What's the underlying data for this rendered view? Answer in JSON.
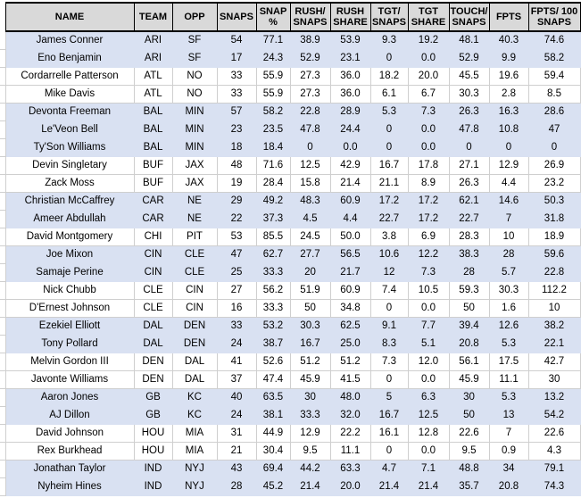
{
  "colors": {
    "header_fill": "#D9D9D9",
    "header_border": "#000000",
    "shaded_row_fill": "#D9E1F2",
    "gridline": "#CFCFCF",
    "text": "#000000"
  },
  "table": {
    "columns": [
      {
        "key": "name",
        "label": "NAME"
      },
      {
        "key": "team",
        "label": "TEAM"
      },
      {
        "key": "opp",
        "label": "OPP"
      },
      {
        "key": "snaps",
        "label": "SNAPS"
      },
      {
        "key": "snap_pct",
        "label": "SNAP\n%"
      },
      {
        "key": "rush_snaps",
        "label": "RUSH/\nSNAPS"
      },
      {
        "key": "rush_share",
        "label": "RUSH\nSHARE"
      },
      {
        "key": "tgt_snaps",
        "label": "TGT/\nSNAPS"
      },
      {
        "key": "tgt_share",
        "label": "TGT\nSHARE"
      },
      {
        "key": "touch_snaps",
        "label": "TOUCH/\nSNAPS"
      },
      {
        "key": "fpts",
        "label": "FPTS"
      },
      {
        "key": "fpts_100",
        "label": "FPTS/ 100\nSNAPS"
      }
    ],
    "rows": [
      {
        "name": "James Conner",
        "team": "ARI",
        "opp": "SF",
        "snaps": "54",
        "snap_pct": "77.1",
        "rush_snaps": "38.9",
        "rush_share": "53.9",
        "tgt_snaps": "9.3",
        "tgt_share": "19.2",
        "touch_snaps": "48.1",
        "fpts": "40.3",
        "fpts_100": "74.6"
      },
      {
        "name": "Eno Benjamin",
        "team": "ARI",
        "opp": "SF",
        "snaps": "17",
        "snap_pct": "24.3",
        "rush_snaps": "52.9",
        "rush_share": "23.1",
        "tgt_snaps": "0",
        "tgt_share": "0.0",
        "touch_snaps": "52.9",
        "fpts": "9.9",
        "fpts_100": "58.2"
      },
      {
        "name": "Cordarrelle Patterson",
        "team": "ATL",
        "opp": "NO",
        "snaps": "33",
        "snap_pct": "55.9",
        "rush_snaps": "27.3",
        "rush_share": "36.0",
        "tgt_snaps": "18.2",
        "tgt_share": "20.0",
        "touch_snaps": "45.5",
        "fpts": "19.6",
        "fpts_100": "59.4"
      },
      {
        "name": "Mike Davis",
        "team": "ATL",
        "opp": "NO",
        "snaps": "33",
        "snap_pct": "55.9",
        "rush_snaps": "27.3",
        "rush_share": "36.0",
        "tgt_snaps": "6.1",
        "tgt_share": "6.7",
        "touch_snaps": "30.3",
        "fpts": "2.8",
        "fpts_100": "8.5"
      },
      {
        "name": "Devonta Freeman",
        "team": "BAL",
        "opp": "MIN",
        "snaps": "57",
        "snap_pct": "58.2",
        "rush_snaps": "22.8",
        "rush_share": "28.9",
        "tgt_snaps": "5.3",
        "tgt_share": "7.3",
        "touch_snaps": "26.3",
        "fpts": "16.3",
        "fpts_100": "28.6"
      },
      {
        "name": "Le'Veon Bell",
        "team": "BAL",
        "opp": "MIN",
        "snaps": "23",
        "snap_pct": "23.5",
        "rush_snaps": "47.8",
        "rush_share": "24.4",
        "tgt_snaps": "0",
        "tgt_share": "0.0",
        "touch_snaps": "47.8",
        "fpts": "10.8",
        "fpts_100": "47"
      },
      {
        "name": "Ty'Son Williams",
        "team": "BAL",
        "opp": "MIN",
        "snaps": "18",
        "snap_pct": "18.4",
        "rush_snaps": "0",
        "rush_share": "0.0",
        "tgt_snaps": "0",
        "tgt_share": "0.0",
        "touch_snaps": "0",
        "fpts": "0",
        "fpts_100": "0"
      },
      {
        "name": "Devin Singletary",
        "team": "BUF",
        "opp": "JAX",
        "snaps": "48",
        "snap_pct": "71.6",
        "rush_snaps": "12.5",
        "rush_share": "42.9",
        "tgt_snaps": "16.7",
        "tgt_share": "17.8",
        "touch_snaps": "27.1",
        "fpts": "12.9",
        "fpts_100": "26.9"
      },
      {
        "name": "Zack Moss",
        "team": "BUF",
        "opp": "JAX",
        "snaps": "19",
        "snap_pct": "28.4",
        "rush_snaps": "15.8",
        "rush_share": "21.4",
        "tgt_snaps": "21.1",
        "tgt_share": "8.9",
        "touch_snaps": "26.3",
        "fpts": "4.4",
        "fpts_100": "23.2"
      },
      {
        "name": "Christian McCaffrey",
        "team": "CAR",
        "opp": "NE",
        "snaps": "29",
        "snap_pct": "49.2",
        "rush_snaps": "48.3",
        "rush_share": "60.9",
        "tgt_snaps": "17.2",
        "tgt_share": "17.2",
        "touch_snaps": "62.1",
        "fpts": "14.6",
        "fpts_100": "50.3"
      },
      {
        "name": "Ameer Abdullah",
        "team": "CAR",
        "opp": "NE",
        "snaps": "22",
        "snap_pct": "37.3",
        "rush_snaps": "4.5",
        "rush_share": "4.4",
        "tgt_snaps": "22.7",
        "tgt_share": "17.2",
        "touch_snaps": "22.7",
        "fpts": "7",
        "fpts_100": "31.8"
      },
      {
        "name": "David Montgomery",
        "team": "CHI",
        "opp": "PIT",
        "snaps": "53",
        "snap_pct": "85.5",
        "rush_snaps": "24.5",
        "rush_share": "50.0",
        "tgt_snaps": "3.8",
        "tgt_share": "6.9",
        "touch_snaps": "28.3",
        "fpts": "10",
        "fpts_100": "18.9"
      },
      {
        "name": "Joe Mixon",
        "team": "CIN",
        "opp": "CLE",
        "snaps": "47",
        "snap_pct": "62.7",
        "rush_snaps": "27.7",
        "rush_share": "56.5",
        "tgt_snaps": "10.6",
        "tgt_share": "12.2",
        "touch_snaps": "38.3",
        "fpts": "28",
        "fpts_100": "59.6"
      },
      {
        "name": "Samaje Perine",
        "team": "CIN",
        "opp": "CLE",
        "snaps": "25",
        "snap_pct": "33.3",
        "rush_snaps": "20",
        "rush_share": "21.7",
        "tgt_snaps": "12",
        "tgt_share": "7.3",
        "touch_snaps": "28",
        "fpts": "5.7",
        "fpts_100": "22.8"
      },
      {
        "name": "Nick Chubb",
        "team": "CLE",
        "opp": "CIN",
        "snaps": "27",
        "snap_pct": "56.2",
        "rush_snaps": "51.9",
        "rush_share": "60.9",
        "tgt_snaps": "7.4",
        "tgt_share": "10.5",
        "touch_snaps": "59.3",
        "fpts": "30.3",
        "fpts_100": "112.2"
      },
      {
        "name": "D'Ernest Johnson",
        "team": "CLE",
        "opp": "CIN",
        "snaps": "16",
        "snap_pct": "33.3",
        "rush_snaps": "50",
        "rush_share": "34.8",
        "tgt_snaps": "0",
        "tgt_share": "0.0",
        "touch_snaps": "50",
        "fpts": "1.6",
        "fpts_100": "10"
      },
      {
        "name": "Ezekiel Elliott",
        "team": "DAL",
        "opp": "DEN",
        "snaps": "33",
        "snap_pct": "53.2",
        "rush_snaps": "30.3",
        "rush_share": "62.5",
        "tgt_snaps": "9.1",
        "tgt_share": "7.7",
        "touch_snaps": "39.4",
        "fpts": "12.6",
        "fpts_100": "38.2"
      },
      {
        "name": "Tony Pollard",
        "team": "DAL",
        "opp": "DEN",
        "snaps": "24",
        "snap_pct": "38.7",
        "rush_snaps": "16.7",
        "rush_share": "25.0",
        "tgt_snaps": "8.3",
        "tgt_share": "5.1",
        "touch_snaps": "20.8",
        "fpts": "5.3",
        "fpts_100": "22.1"
      },
      {
        "name": "Melvin Gordon III",
        "team": "DEN",
        "opp": "DAL",
        "snaps": "41",
        "snap_pct": "52.6",
        "rush_snaps": "51.2",
        "rush_share": "51.2",
        "tgt_snaps": "7.3",
        "tgt_share": "12.0",
        "touch_snaps": "56.1",
        "fpts": "17.5",
        "fpts_100": "42.7"
      },
      {
        "name": "Javonte Williams",
        "team": "DEN",
        "opp": "DAL",
        "snaps": "37",
        "snap_pct": "47.4",
        "rush_snaps": "45.9",
        "rush_share": "41.5",
        "tgt_snaps": "0",
        "tgt_share": "0.0",
        "touch_snaps": "45.9",
        "fpts": "11.1",
        "fpts_100": "30"
      },
      {
        "name": "Aaron Jones",
        "team": "GB",
        "opp": "KC",
        "snaps": "40",
        "snap_pct": "63.5",
        "rush_snaps": "30",
        "rush_share": "48.0",
        "tgt_snaps": "5",
        "tgt_share": "6.3",
        "touch_snaps": "30",
        "fpts": "5.3",
        "fpts_100": "13.2"
      },
      {
        "name": "AJ Dillon",
        "team": "GB",
        "opp": "KC",
        "snaps": "24",
        "snap_pct": "38.1",
        "rush_snaps": "33.3",
        "rush_share": "32.0",
        "tgt_snaps": "16.7",
        "tgt_share": "12.5",
        "touch_snaps": "50",
        "fpts": "13",
        "fpts_100": "54.2"
      },
      {
        "name": "David Johnson",
        "team": "HOU",
        "opp": "MIA",
        "snaps": "31",
        "snap_pct": "44.9",
        "rush_snaps": "12.9",
        "rush_share": "22.2",
        "tgt_snaps": "16.1",
        "tgt_share": "12.8",
        "touch_snaps": "22.6",
        "fpts": "7",
        "fpts_100": "22.6"
      },
      {
        "name": "Rex Burkhead",
        "team": "HOU",
        "opp": "MIA",
        "snaps": "21",
        "snap_pct": "30.4",
        "rush_snaps": "9.5",
        "rush_share": "11.1",
        "tgt_snaps": "0",
        "tgt_share": "0.0",
        "touch_snaps": "9.5",
        "fpts": "0.9",
        "fpts_100": "4.3"
      },
      {
        "name": "Jonathan Taylor",
        "team": "IND",
        "opp": "NYJ",
        "snaps": "43",
        "snap_pct": "69.4",
        "rush_snaps": "44.2",
        "rush_share": "63.3",
        "tgt_snaps": "4.7",
        "tgt_share": "7.1",
        "touch_snaps": "48.8",
        "fpts": "34",
        "fpts_100": "79.1"
      },
      {
        "name": "Nyheim Hines",
        "team": "IND",
        "opp": "NYJ",
        "snaps": "28",
        "snap_pct": "45.2",
        "rush_snaps": "21.4",
        "rush_share": "20.0",
        "tgt_snaps": "21.4",
        "tgt_share": "21.4",
        "touch_snaps": "35.7",
        "fpts": "20.8",
        "fpts_100": "74.3"
      }
    ]
  }
}
